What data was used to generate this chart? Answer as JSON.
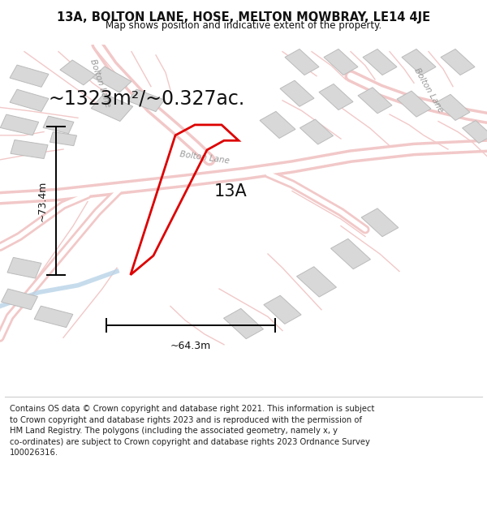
{
  "title_line1": "13A, BOLTON LANE, HOSE, MELTON MOWBRAY, LE14 4JE",
  "title_line2": "Map shows position and indicative extent of the property.",
  "area_text": "~1323m²/~0.327ac.",
  "label_13a": "13A",
  "dim_height": "~73.4m",
  "dim_width": "~64.3m",
  "footer_lines": [
    "Contains OS data © Crown copyright and database right 2021. This information is subject to Crown copyright and database rights 2023 and is reproduced with the permission of",
    "HM Land Registry. The polygons (including the associated geometry, namely x, y",
    "co-ordinates) are subject to Crown copyright and database rights 2023 Ordnance Survey",
    "100026316."
  ],
  "map_bg": "#f7f3f3",
  "road_outer": "#f2c8c8",
  "road_inner": "#ffffff",
  "building_fill": "#d8d8d8",
  "building_edge": "#bbbbbb",
  "water_color": "#b8d4e8",
  "plot_color": "#dd0000",
  "text_color": "#111111",
  "road_label_color": "#999999",
  "dim_color": "#111111",
  "title_fontsize": 10.5,
  "subtitle_fontsize": 8.5,
  "area_fontsize": 17,
  "label_fontsize": 15,
  "dim_fontsize": 9,
  "footer_fontsize": 7.2,
  "road_label_fontsize": 7.5
}
